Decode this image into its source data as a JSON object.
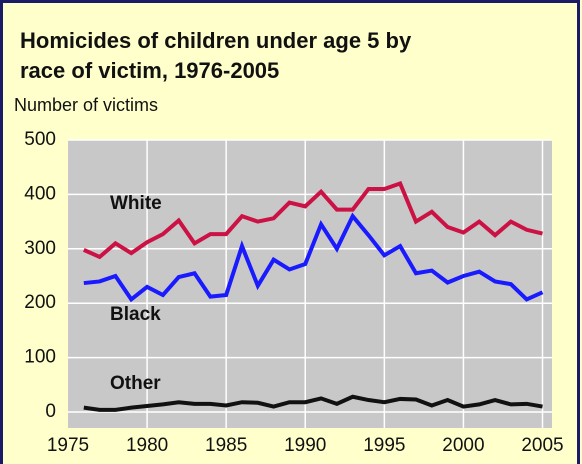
{
  "chart_data": {
    "type": "line",
    "title": [
      "Homicides of children under age 5 by",
      "race of victim, 1976-2005"
    ],
    "y_label": "Number of victims",
    "x": [
      1976,
      1977,
      1978,
      1979,
      1980,
      1981,
      1982,
      1983,
      1984,
      1985,
      1986,
      1987,
      1988,
      1989,
      1990,
      1991,
      1992,
      1993,
      1994,
      1995,
      1996,
      1997,
      1998,
      1999,
      2000,
      2001,
      2002,
      2003,
      2004,
      2005
    ],
    "series": [
      {
        "name": "White",
        "color": "#cc1144",
        "values": [
          298,
          285,
          310,
          292,
          312,
          327,
          352,
          310,
          327,
          327,
          360,
          350,
          356,
          385,
          378,
          405,
          372,
          372,
          410,
          410,
          420,
          350,
          368,
          340,
          330,
          350,
          325,
          350,
          335,
          328
        ]
      },
      {
        "name": "Black",
        "color": "#1a1aff",
        "values": [
          237,
          240,
          250,
          207,
          230,
          215,
          248,
          255,
          212,
          215,
          305,
          232,
          280,
          262,
          272,
          345,
          300,
          360,
          325,
          288,
          305,
          255,
          260,
          238,
          250,
          258,
          240,
          235,
          207,
          220
        ]
      },
      {
        "name": "Other",
        "color": "#111111",
        "values": [
          8,
          4,
          4,
          8,
          11,
          14,
          18,
          15,
          15,
          12,
          18,
          17,
          10,
          18,
          18,
          25,
          15,
          28,
          22,
          18,
          24,
          23,
          12,
          22,
          10,
          14,
          22,
          14,
          15,
          10
        ]
      }
    ],
    "xlim": [
      1975,
      2005.6
    ],
    "xticks": [
      1975,
      1980,
      1985,
      1990,
      1995,
      2000,
      2005
    ],
    "ylim": [
      0,
      500
    ],
    "yticks": [
      0,
      100,
      200,
      300,
      400,
      500
    ],
    "grid": true
  }
}
